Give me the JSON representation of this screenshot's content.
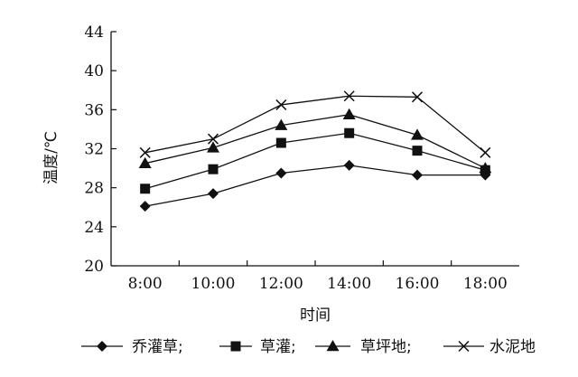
{
  "chart_data": {
    "type": "line",
    "xlabel": "时间",
    "ylabel": "温度/℃",
    "categories": [
      "8:00",
      "10:00",
      "12:00",
      "14:00",
      "16:00",
      "18:00"
    ],
    "ylim": [
      20,
      44
    ],
    "yticks": [
      20,
      24,
      28,
      32,
      36,
      40,
      44
    ],
    "grid": false,
    "legend_position": "bottom",
    "series": [
      {
        "name": "乔灌草",
        "legend_label": "乔灌草;",
        "marker": "diamond",
        "values": [
          26.1,
          27.4,
          29.5,
          30.3,
          29.3,
          29.3
        ]
      },
      {
        "name": "草灌",
        "legend_label": "草灌;",
        "marker": "square",
        "values": [
          27.9,
          29.9,
          32.6,
          33.6,
          31.8,
          29.8
        ]
      },
      {
        "name": "草坪地",
        "legend_label": "草坪地;",
        "marker": "triangle",
        "values": [
          30.5,
          32.1,
          34.4,
          35.5,
          33.4,
          30.0
        ]
      },
      {
        "name": "水泥地",
        "legend_label": "水泥地",
        "marker": "x",
        "values": [
          31.6,
          33.0,
          36.5,
          37.4,
          37.3,
          31.6
        ]
      }
    ]
  }
}
